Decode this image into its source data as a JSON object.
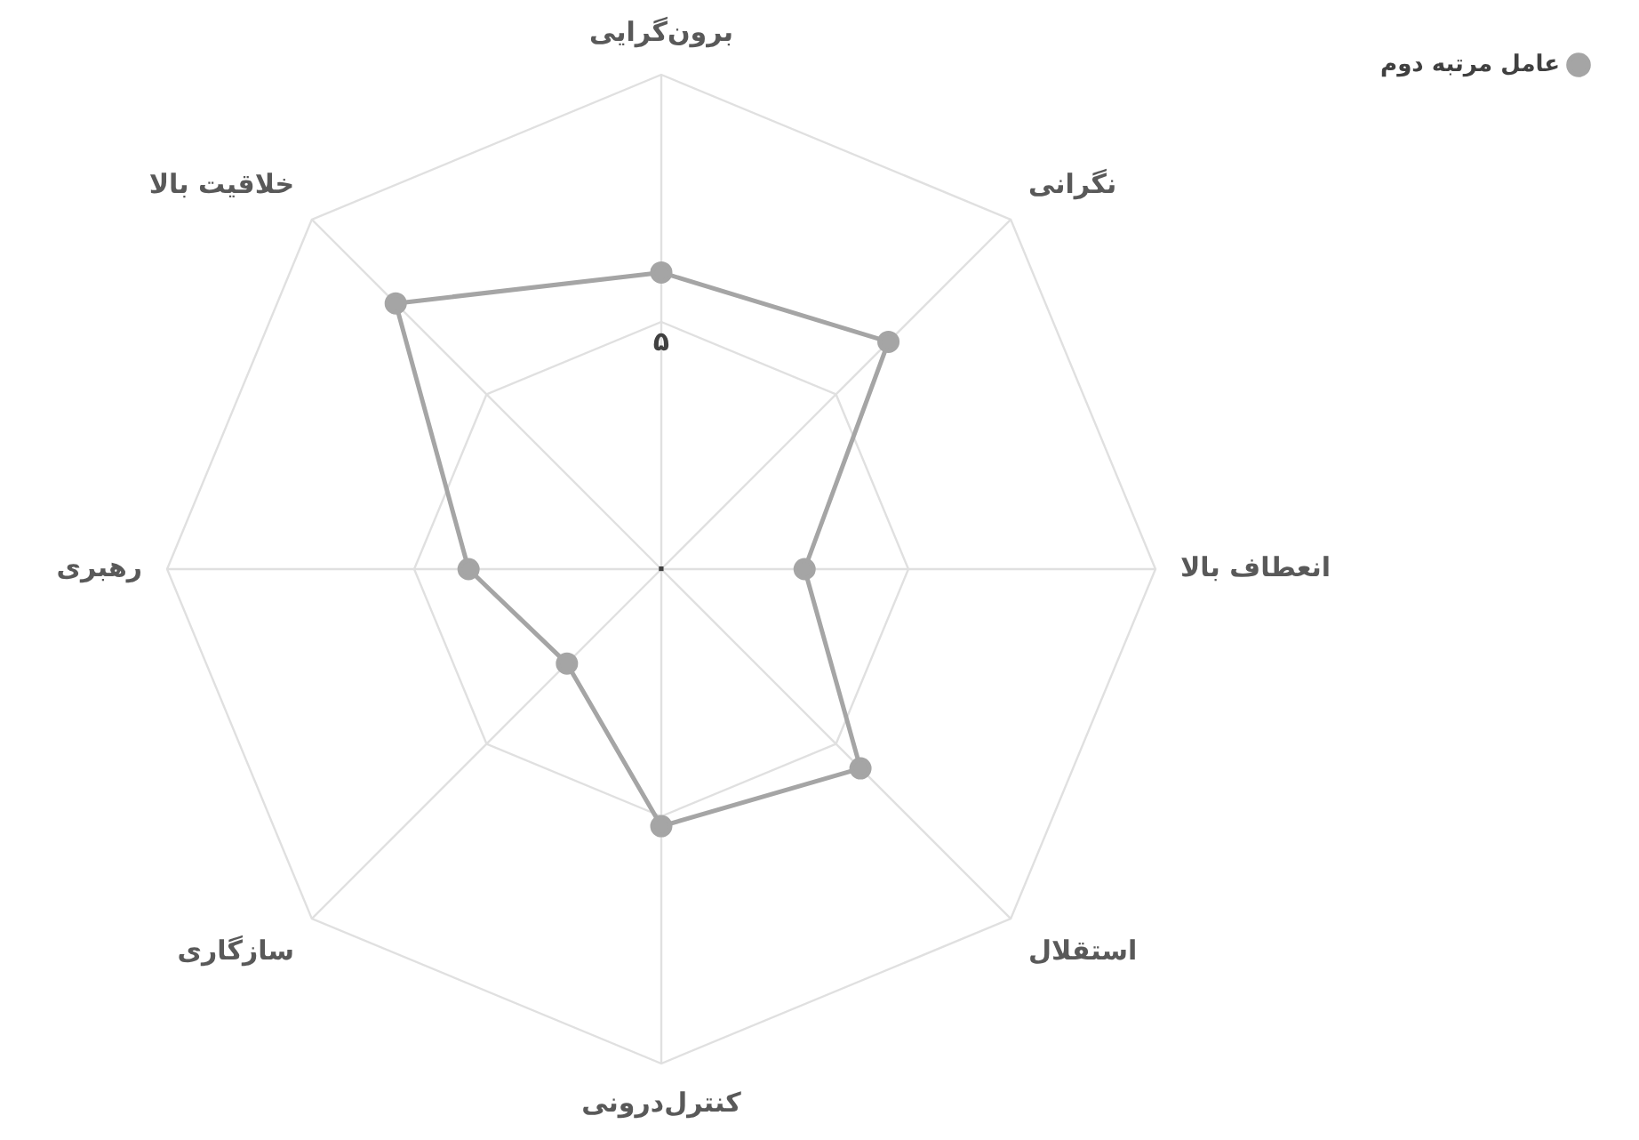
{
  "chart_data": {
    "type": "radar",
    "categories": [
      "برون‌گرایی",
      "نگرانی",
      "انعطاف بالا",
      "استقلال",
      "کنترل‌درونی",
      "سازگاری",
      "رهبری",
      "خلاقیت بالا"
    ],
    "series": [
      {
        "name": "عامل مرتبه دوم",
        "color": "#a5a5a5",
        "values": [
          6,
          6.5,
          2.9,
          5.7,
          5.2,
          2.7,
          3.9,
          7.6
        ]
      }
    ],
    "ylim": [
      0,
      10
    ],
    "yticks": [
      {
        "value": 0,
        "label": "۰"
      },
      {
        "value": 5,
        "label": "۵"
      }
    ],
    "grid": true,
    "legend": "top right",
    "marker": "circle"
  }
}
